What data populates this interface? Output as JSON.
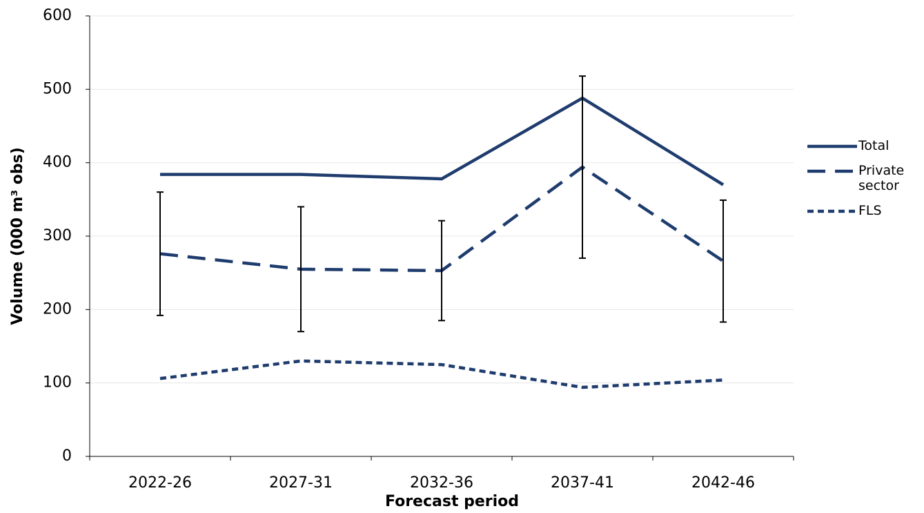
{
  "chart_data": {
    "type": "line",
    "x_label": "Forecast period",
    "y_label": "Volume (000 m³ obs)",
    "categories": [
      "2022-26",
      "2027-31",
      "2032-36",
      "2037-41",
      "2042-46"
    ],
    "series": [
      {
        "name": "Total",
        "color": "#1f3c6e",
        "line_style": "solid",
        "values": [
          384,
          384,
          378,
          488,
          370
        ]
      },
      {
        "name": "Private sector",
        "color": "#1f3c6e",
        "line_style": "long-dash",
        "values": [
          276,
          255,
          253,
          394,
          266
        ],
        "errors": [
          84,
          85,
          68,
          124,
          83
        ],
        "error_color": "#000000"
      },
      {
        "name": "FLS",
        "color": "#1f3c6e",
        "line_style": "short-dash",
        "values": [
          106,
          130,
          125,
          94,
          104
        ]
      }
    ],
    "ylim": [
      0,
      600
    ],
    "yticks": [
      0,
      100,
      200,
      300,
      400,
      500,
      600
    ],
    "grid": true,
    "legend": "right"
  }
}
